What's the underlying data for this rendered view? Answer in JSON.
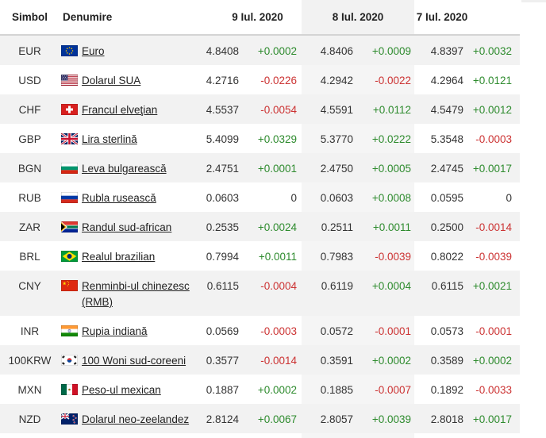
{
  "colors": {
    "positive": "#2e8b2e",
    "negative": "#cc3333",
    "neutral": "#333333",
    "text": "#333333",
    "link": "#222222",
    "header_text": "#222222",
    "row_alt": "#f2f2f2",
    "hl_header": "#f2f2f2",
    "border": "#d4d4d4"
  },
  "table": {
    "headers": {
      "symbol": "Simbol",
      "name": "Denumire"
    },
    "dates": [
      "9 Iul. 2020",
      "8 Iul. 2020",
      "7 Iul. 2020"
    ],
    "highlighted_date": "8 Iul. 2020",
    "rows": [
      {
        "symbol": "EUR",
        "flag": "eu",
        "name": "Euro",
        "values": [
          {
            "rate": "4.8408",
            "delta": "+0.0002",
            "dir": "up"
          },
          {
            "rate": "4.8406",
            "delta": "+0.0009",
            "dir": "up"
          },
          {
            "rate": "4.8397",
            "delta": "+0.0032",
            "dir": "up"
          }
        ]
      },
      {
        "symbol": "USD",
        "flag": "us",
        "name": "Dolarul SUA",
        "values": [
          {
            "rate": "4.2716",
            "delta": "-0.0226",
            "dir": "down"
          },
          {
            "rate": "4.2942",
            "delta": "-0.0022",
            "dir": "down"
          },
          {
            "rate": "4.2964",
            "delta": "+0.0121",
            "dir": "up"
          }
        ]
      },
      {
        "symbol": "CHF",
        "flag": "ch",
        "name": "Francul elveţian",
        "values": [
          {
            "rate": "4.5537",
            "delta": "-0.0054",
            "dir": "down"
          },
          {
            "rate": "4.5591",
            "delta": "+0.0112",
            "dir": "up"
          },
          {
            "rate": "4.5479",
            "delta": "+0.0012",
            "dir": "up"
          }
        ]
      },
      {
        "symbol": "GBP",
        "flag": "gb",
        "name": "Lira sterlină",
        "values": [
          {
            "rate": "5.4099",
            "delta": "+0.0329",
            "dir": "up"
          },
          {
            "rate": "5.3770",
            "delta": "+0.0222",
            "dir": "up"
          },
          {
            "rate": "5.3548",
            "delta": "-0.0003",
            "dir": "down"
          }
        ]
      },
      {
        "symbol": "BGN",
        "flag": "bg",
        "name": "Leva bulgarească",
        "values": [
          {
            "rate": "2.4751",
            "delta": "+0.0001",
            "dir": "up"
          },
          {
            "rate": "2.4750",
            "delta": "+0.0005",
            "dir": "up"
          },
          {
            "rate": "2.4745",
            "delta": "+0.0017",
            "dir": "up"
          }
        ]
      },
      {
        "symbol": "RUB",
        "flag": "ru",
        "name": "Rubla rusească",
        "values": [
          {
            "rate": "0.0603",
            "delta": "0",
            "dir": "zero"
          },
          {
            "rate": "0.0603",
            "delta": "+0.0008",
            "dir": "up"
          },
          {
            "rate": "0.0595",
            "delta": "0",
            "dir": "zero"
          }
        ]
      },
      {
        "symbol": "ZAR",
        "flag": "za",
        "name": "Randul sud-african",
        "values": [
          {
            "rate": "0.2535",
            "delta": "+0.0024",
            "dir": "up"
          },
          {
            "rate": "0.2511",
            "delta": "+0.0011",
            "dir": "up"
          },
          {
            "rate": "0.2500",
            "delta": "-0.0014",
            "dir": "down"
          }
        ]
      },
      {
        "symbol": "BRL",
        "flag": "br",
        "name": "Realul brazilian",
        "values": [
          {
            "rate": "0.7994",
            "delta": "+0.0011",
            "dir": "up"
          },
          {
            "rate": "0.7983",
            "delta": "-0.0039",
            "dir": "down"
          },
          {
            "rate": "0.8022",
            "delta": "-0.0039",
            "dir": "down"
          }
        ]
      },
      {
        "symbol": "CNY",
        "flag": "cn",
        "name": "Renminbi-ul chinezesc (RMB)",
        "values": [
          {
            "rate": "0.6115",
            "delta": "-0.0004",
            "dir": "down"
          },
          {
            "rate": "0.6119",
            "delta": "+0.0004",
            "dir": "up"
          },
          {
            "rate": "0.6115",
            "delta": "+0.0021",
            "dir": "up"
          }
        ]
      },
      {
        "symbol": "INR",
        "flag": "in",
        "name": "Rupia indiană",
        "values": [
          {
            "rate": "0.0569",
            "delta": "-0.0003",
            "dir": "down"
          },
          {
            "rate": "0.0572",
            "delta": "-0.0001",
            "dir": "down"
          },
          {
            "rate": "0.0573",
            "delta": "-0.0001",
            "dir": "down"
          }
        ]
      },
      {
        "symbol": "100KRW",
        "flag": "kr",
        "name": "100 Woni sud-coreeni",
        "values": [
          {
            "rate": "0.3577",
            "delta": "-0.0014",
            "dir": "down"
          },
          {
            "rate": "0.3591",
            "delta": "+0.0002",
            "dir": "up"
          },
          {
            "rate": "0.3589",
            "delta": "+0.0002",
            "dir": "up"
          }
        ]
      },
      {
        "symbol": "MXN",
        "flag": "mx",
        "name": "Peso-ul mexican",
        "values": [
          {
            "rate": "0.1887",
            "delta": "+0.0002",
            "dir": "up"
          },
          {
            "rate": "0.1885",
            "delta": "-0.0007",
            "dir": "down"
          },
          {
            "rate": "0.1892",
            "delta": "-0.0033",
            "dir": "down"
          }
        ]
      },
      {
        "symbol": "NZD",
        "flag": "nz",
        "name": "Dolarul neo-zeelandez",
        "values": [
          {
            "rate": "2.8124",
            "delta": "+0.0067",
            "dir": "up"
          },
          {
            "rate": "2.8057",
            "delta": "+0.0039",
            "dir": "up"
          },
          {
            "rate": "2.8018",
            "delta": "+0.0017",
            "dir": "up"
          }
        ]
      }
    ]
  }
}
